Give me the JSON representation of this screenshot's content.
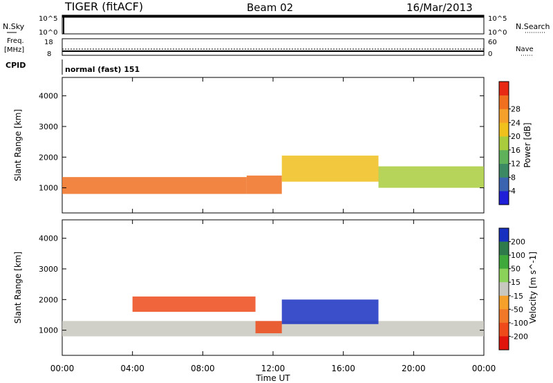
{
  "header": {
    "radar": "TIGER (fitACF)",
    "beam": "Beam 02",
    "date": "16/Mar/2013"
  },
  "top_panels": {
    "nsky_label": "N.Sky",
    "nsearch_label": "N.Search",
    "freq_label_1": "Freq.",
    "freq_label_2": "[MHz]",
    "nave_label": "Nave",
    "cpid_label": "CPID",
    "cpid_value": "normal (fast) 151",
    "nsky_ticks": [
      "10^5",
      "10^0"
    ],
    "nsearch_ticks": [
      "10^5",
      "10^0"
    ],
    "freq_ticks": [
      "18",
      "8"
    ],
    "nave_ticks": [
      "60",
      "0"
    ]
  },
  "x_axis": {
    "label": "Time UT",
    "ticks": [
      "00:00",
      "04:00",
      "08:00",
      "12:00",
      "16:00",
      "20:00",
      "00:00"
    ]
  },
  "chart_data": [
    {
      "type": "heatmap",
      "panel": "power",
      "ylabel": "Slant Range [km]",
      "yticks": [
        "1000",
        "2000",
        "3000",
        "4000"
      ],
      "ylim": [
        180,
        4600
      ],
      "xlim_hours": [
        0,
        24
      ],
      "colorbar": {
        "label": "Power [dB]",
        "ticks": [
          "4",
          "8",
          "12",
          "16",
          "20",
          "24",
          "28"
        ],
        "colors": [
          "#1f1fd8",
          "#3a64b0",
          "#3c8a64",
          "#5fb25a",
          "#a8cc3c",
          "#f0c01c",
          "#f5a02a",
          "#f07020",
          "#e82a14"
        ]
      },
      "bands": [
        {
          "start_h": 0.0,
          "end_h": 10.5,
          "range_km": [
            800,
            1350
          ],
          "level_db": 26
        },
        {
          "start_h": 10.5,
          "end_h": 12.5,
          "range_km": [
            800,
            1400
          ],
          "level_db": 28
        },
        {
          "start_h": 12.5,
          "end_h": 18.0,
          "range_km": [
            1200,
            2050
          ],
          "level_db": 18
        },
        {
          "start_h": 18.0,
          "end_h": 24.0,
          "range_km": [
            1000,
            1700
          ],
          "level_db": 14
        }
      ]
    },
    {
      "type": "heatmap",
      "panel": "velocity",
      "ylabel": "Slant Range [km]",
      "yticks": [
        "1000",
        "2000",
        "3000",
        "4000"
      ],
      "ylim": [
        180,
        4600
      ],
      "xlim_hours": [
        0,
        24
      ],
      "colorbar": {
        "label": "Velocity [m s^-1]",
        "ticks": [
          "200",
          "100",
          "50",
          "15",
          "-15",
          "-50",
          "-100",
          "-200"
        ],
        "colors": [
          "#1830c0",
          "#2f7a4a",
          "#3fa83a",
          "#8ad25a",
          "#c8c8c0",
          "#f5a02a",
          "#f07828",
          "#ee4a1a",
          "#e0140c"
        ]
      },
      "bands": [
        {
          "start_h": 0.0,
          "end_h": 24.0,
          "range_km": [
            800,
            1300
          ],
          "velocity_ms": 0
        },
        {
          "start_h": 4.0,
          "end_h": 11.0,
          "range_km": [
            1600,
            2100
          ],
          "velocity_ms": -90
        },
        {
          "start_h": 11.0,
          "end_h": 12.5,
          "range_km": [
            900,
            1300
          ],
          "velocity_ms": -110
        },
        {
          "start_h": 12.5,
          "end_h": 18.0,
          "range_km": [
            1200,
            2000
          ],
          "velocity_ms": 150
        }
      ]
    }
  ]
}
